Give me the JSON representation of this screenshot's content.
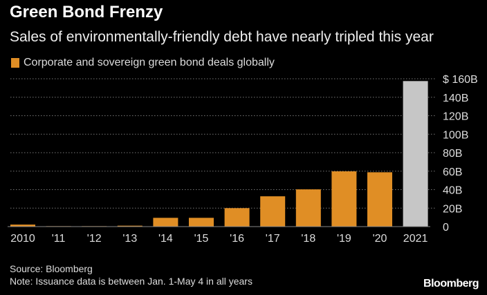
{
  "title": "Green Bond Frenzy",
  "subtitle": "Sales of environmentally-friendly debt have nearly tripled this year",
  "legend": "Corporate and sovereign green bond deals globally",
  "source": "Source: Bloomberg",
  "note": "Note: Issuance data is between Jan. 1-May 4 in all years",
  "logo": "Bloomberg",
  "chart_data": {
    "type": "bar",
    "categories": [
      "2010",
      "'11",
      "'12",
      "'13",
      "'14",
      "'15",
      "'16",
      "'17",
      "'18",
      "'19",
      "'20",
      "2021"
    ],
    "series": [
      {
        "name": "Corporate and sovereign green bond deals globally",
        "values": [
          2.2,
          0.5,
          0.5,
          1,
          9.5,
          9.5,
          20,
          32.8,
          40.3,
          59.8,
          58.8,
          157.5
        ]
      }
    ],
    "colors": [
      "#e08e25",
      "#e08e25",
      "#e08e25",
      "#e08e25",
      "#e08e25",
      "#e08e25",
      "#e08e25",
      "#e08e25",
      "#e08e25",
      "#e08e25",
      "#e08e25",
      "#c6c6c6"
    ],
    "yticks": [
      0,
      20,
      40,
      60,
      80,
      100,
      120,
      140,
      160
    ],
    "ytick_labels": [
      "0",
      "20B",
      "40B",
      "60B",
      "80B",
      "100B",
      "120B",
      "140B",
      "$ 160B"
    ],
    "ylim": [
      0,
      160
    ],
    "grid": true,
    "yaxis_side": "right",
    "legend_position": "top-left"
  }
}
